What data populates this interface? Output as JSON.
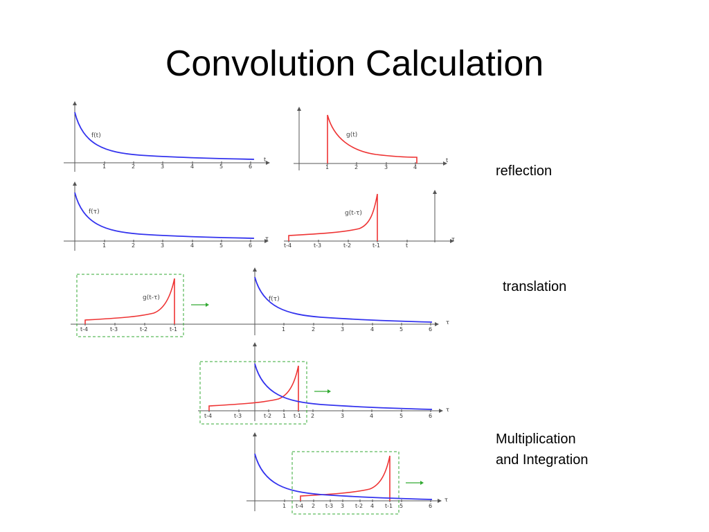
{
  "slide": {
    "title": "Convolution Calculation"
  },
  "labels": {
    "reflection": "reflection",
    "translation": "translation",
    "multiplication_line1": "Multiplication",
    "multiplication_line2": "and Integration"
  },
  "colors": {
    "f_curve": "#3333ee",
    "g_curve": "#ee3333",
    "window": "#33aa33",
    "axis": "#555555"
  },
  "plots": {
    "f_t": {
      "fn_label": "f(t)",
      "axis_label": "t",
      "ticks": [
        "1",
        "2",
        "3",
        "4",
        "5",
        "6"
      ]
    },
    "g_t": {
      "fn_label": "g(t)",
      "axis_label": "t",
      "ticks": [
        "1",
        "2",
        "3",
        "4"
      ]
    },
    "f_tau": {
      "fn_label": "f(τ)",
      "axis_label": "τ",
      "ticks": [
        "1",
        "2",
        "3",
        "4",
        "5",
        "6"
      ]
    },
    "g_t_minus_tau": {
      "fn_label": "g(t-τ)",
      "axis_label": "τ",
      "ticks": [
        "t-4",
        "t-3",
        "t-2",
        "t-1",
        "t"
      ]
    },
    "translation": {
      "g_label": "g(t-τ)",
      "f_label": "f(τ)",
      "axis_label": "τ",
      "g_ticks": [
        "t-4",
        "t-3",
        "t-2",
        "t-1"
      ],
      "f_ticks": [
        "1",
        "2",
        "3",
        "4",
        "5",
        "6"
      ]
    },
    "overlap1": {
      "axis_label": "τ",
      "ticks": [
        "t-4",
        "t-3",
        "t-2",
        "1",
        "t-1",
        "2",
        "3",
        "4",
        "5",
        "6"
      ]
    },
    "overlap2": {
      "axis_label": "τ",
      "ticks": [
        "1",
        "t-4",
        "2",
        "t-3",
        "3",
        "t-2",
        "4",
        "t-1",
        "5",
        "6"
      ]
    }
  }
}
